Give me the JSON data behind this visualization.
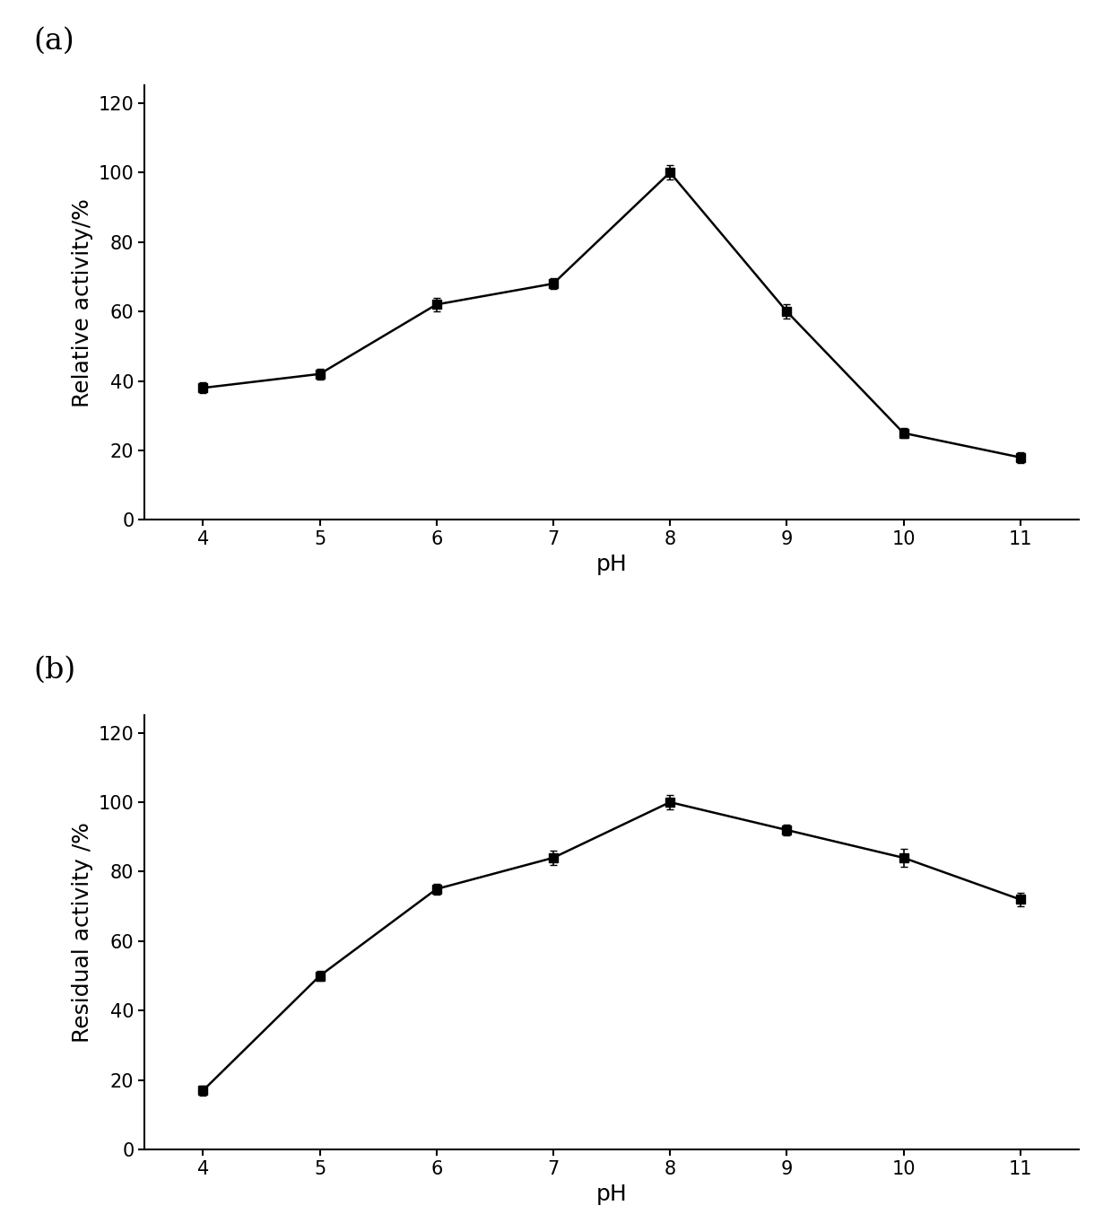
{
  "panel_a": {
    "label": "(a)",
    "x": [
      4,
      5,
      6,
      7,
      8,
      9,
      10,
      11
    ],
    "y": [
      38,
      42,
      62,
      68,
      100,
      60,
      25,
      18
    ],
    "yerr": [
      1.5,
      1.5,
      2.0,
      1.5,
      2.0,
      2.0,
      1.5,
      1.5
    ],
    "xlabel": "pH",
    "ylabel": "Relative activity/%",
    "ylim": [
      0,
      125
    ],
    "yticks": [
      0,
      20,
      40,
      60,
      80,
      100,
      120
    ]
  },
  "panel_b": {
    "label": "(b)",
    "x": [
      4,
      5,
      6,
      7,
      8,
      9,
      10,
      11
    ],
    "y": [
      17,
      50,
      75,
      84,
      100,
      92,
      84,
      72
    ],
    "yerr": [
      1.5,
      1.5,
      1.5,
      2.0,
      2.0,
      1.5,
      2.5,
      2.0
    ],
    "xlabel": "pH",
    "ylabel": "Residual activity /%",
    "ylim": [
      0,
      125
    ],
    "yticks": [
      0,
      20,
      40,
      60,
      80,
      100,
      120
    ]
  },
  "line_color": "#000000",
  "marker": "s",
  "marker_size": 7,
  "marker_facecolor": "#000000",
  "linewidth": 1.8,
  "capsize": 3,
  "elinewidth": 1.2,
  "label_fontsize": 18,
  "tick_fontsize": 15,
  "panel_label_fontsize": 24,
  "xticks": [
    4,
    5,
    6,
    7,
    8,
    9,
    10,
    11
  ],
  "background_color": "#ffffff",
  "xlim": [
    3.5,
    11.5
  ],
  "figure_width": 12.4,
  "figure_height": 13.63,
  "dpi": 100
}
